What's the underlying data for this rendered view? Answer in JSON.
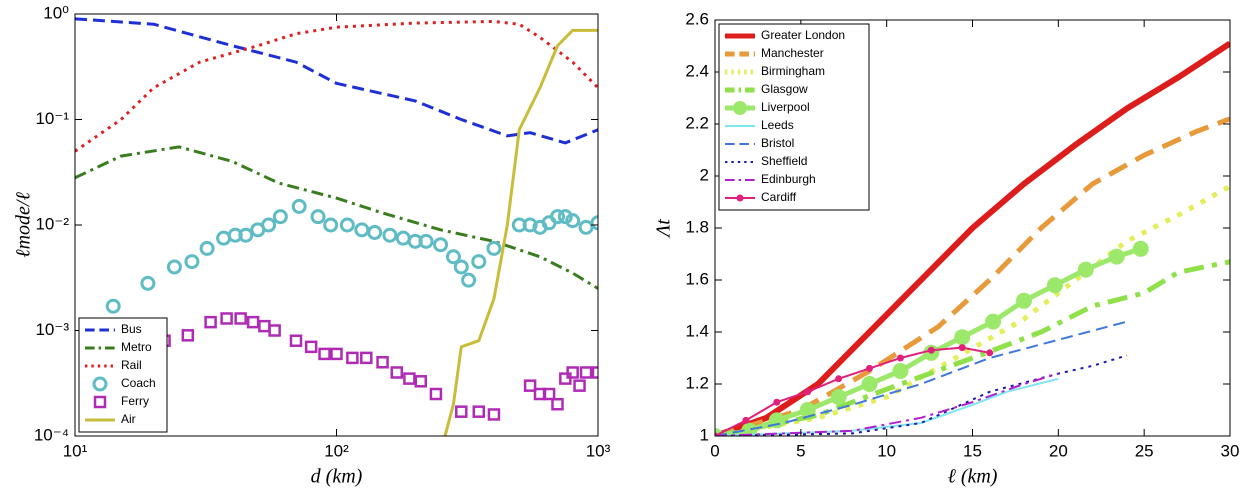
{
  "chart_data": [
    {
      "type": "line",
      "xlabel": "d (km)",
      "ylabel": "ℓmode/ℓ",
      "xscale": "log",
      "yscale": "log",
      "xlim": [
        10,
        1000
      ],
      "ylim": [
        0.0001,
        1
      ],
      "xticks": [
        {
          "value": 10,
          "label": "10¹"
        },
        {
          "value": 100,
          "label": "10²"
        },
        {
          "value": 1000,
          "label": "10³"
        }
      ],
      "yticks": [
        {
          "value": 0.0001,
          "label": "10⁻⁴"
        },
        {
          "value": 0.001,
          "label": "10⁻³"
        },
        {
          "value": 0.01,
          "label": "10⁻²"
        },
        {
          "value": 0.1,
          "label": "10⁻¹"
        },
        {
          "value": 1,
          "label": "10⁰"
        }
      ],
      "legend": "lower left",
      "series": [
        {
          "name": "Bus",
          "color": "#1f2fd6",
          "style": "dashed",
          "x": [
            10,
            20,
            40,
            70,
            100,
            200,
            300,
            450,
            550,
            750,
            1000
          ],
          "values": [
            0.9,
            0.8,
            0.5,
            0.35,
            0.22,
            0.15,
            0.1,
            0.07,
            0.075,
            0.06,
            0.08
          ]
        },
        {
          "name": "Metro",
          "color": "#3a7d1e",
          "style": "dashdot",
          "x": [
            10,
            15,
            25,
            40,
            60,
            100,
            150,
            250,
            400,
            600,
            800,
            1000
          ],
          "values": [
            0.028,
            0.045,
            0.055,
            0.04,
            0.025,
            0.018,
            0.013,
            0.009,
            0.007,
            0.005,
            0.0035,
            0.0025
          ]
        },
        {
          "name": "Rail",
          "color": "#e02020",
          "style": "dotted",
          "x": [
            10,
            15,
            20,
            30,
            50,
            70,
            100,
            200,
            400,
            500,
            600,
            800,
            1000
          ],
          "values": [
            0.05,
            0.1,
            0.2,
            0.35,
            0.5,
            0.65,
            0.75,
            0.82,
            0.85,
            0.8,
            0.6,
            0.35,
            0.2
          ]
        },
        {
          "name": "Coach",
          "color": "#5fbcc4",
          "style": "none",
          "marker": "circle",
          "x": [
            14,
            19,
            24,
            28,
            32,
            37,
            41,
            45,
            50,
            55,
            61,
            72,
            85,
            95,
            110,
            125,
            140,
            160,
            180,
            200,
            220,
            250,
            280,
            300,
            320,
            350,
            400,
            500,
            550,
            600,
            650,
            700,
            750,
            800,
            900,
            1000
          ],
          "values": [
            0.0017,
            0.0028,
            0.004,
            0.0045,
            0.006,
            0.0075,
            0.008,
            0.008,
            0.009,
            0.01,
            0.012,
            0.015,
            0.012,
            0.01,
            0.01,
            0.009,
            0.0085,
            0.008,
            0.0075,
            0.007,
            0.007,
            0.0065,
            0.005,
            0.004,
            0.003,
            0.0045,
            0.006,
            0.01,
            0.01,
            0.0095,
            0.0105,
            0.012,
            0.012,
            0.011,
            0.0095,
            0.0105
          ]
        },
        {
          "name": "Ferry",
          "color": "#b02bb5",
          "style": "none",
          "marker": "square",
          "x": [
            22,
            27,
            33,
            38,
            43,
            48,
            53,
            58,
            70,
            80,
            90,
            100,
            115,
            130,
            150,
            170,
            190,
            210,
            240,
            300,
            350,
            400,
            550,
            600,
            650,
            700,
            750,
            800,
            850,
            900,
            1000
          ],
          "values": [
            0.0008,
            0.0009,
            0.0012,
            0.0013,
            0.0013,
            0.0012,
            0.0011,
            0.001,
            0.0008,
            0.0007,
            0.0006,
            0.0006,
            0.00055,
            0.00055,
            0.0005,
            0.0004,
            0.00035,
            0.00033,
            0.00025,
            0.00017,
            0.00017,
            0.00016,
            0.0003,
            0.00025,
            0.00025,
            0.0002,
            0.00035,
            0.0004,
            0.0003,
            0.0004,
            0.0004
          ]
        },
        {
          "name": "Air",
          "color": "#c8bd3a",
          "style": "solid",
          "x": [
            260,
            280,
            300,
            350,
            400,
            450,
            500,
            600,
            700,
            800,
            1000
          ],
          "values": [
            0.0001,
            0.0002,
            0.0007,
            0.0008,
            0.002,
            0.01,
            0.08,
            0.2,
            0.5,
            0.7,
            0.7
          ]
        }
      ]
    },
    {
      "type": "line",
      "xlabel": "ℓ (km)",
      "ylabel": "Λt",
      "xlim": [
        0,
        30
      ],
      "ylim": [
        1,
        2.6
      ],
      "xticks": [
        0,
        5,
        10,
        15,
        20,
        25,
        30
      ],
      "yticks": [
        1,
        1.2,
        1.4,
        1.6,
        1.8,
        2,
        2.2,
        2.4,
        2.6
      ],
      "legend": "upper left",
      "series": [
        {
          "name": "Greater London",
          "color": "#dd1c1c",
          "style": "solid",
          "linewidth": 6,
          "x": [
            0,
            3,
            6,
            9,
            12,
            15,
            18,
            21,
            24,
            27,
            30
          ],
          "values": [
            1,
            1.07,
            1.2,
            1.4,
            1.6,
            1.8,
            1.97,
            2.12,
            2.26,
            2.38,
            2.51
          ]
        },
        {
          "name": "Manchester",
          "color": "#e8993a",
          "style": "dashed",
          "linewidth": 5,
          "x": [
            0,
            5,
            9,
            13,
            16,
            19,
            22,
            25,
            28,
            30
          ],
          "values": [
            1,
            1.1,
            1.25,
            1.42,
            1.6,
            1.8,
            1.97,
            2.08,
            2.17,
            2.22
          ]
        },
        {
          "name": "Birmingham",
          "color": "#e3ee5a",
          "style": "dotted",
          "linewidth": 5,
          "x": [
            0,
            6,
            10,
            14,
            18,
            21,
            24,
            27,
            30
          ],
          "values": [
            1,
            1.07,
            1.15,
            1.3,
            1.45,
            1.6,
            1.75,
            1.85,
            1.96
          ]
        },
        {
          "name": "Glasgow",
          "color": "#8fe04a",
          "style": "dashdot",
          "linewidth": 5,
          "x": [
            0,
            6,
            10,
            15,
            19,
            22,
            25,
            27,
            30
          ],
          "values": [
            1,
            1.08,
            1.18,
            1.3,
            1.4,
            1.5,
            1.55,
            1.63,
            1.67
          ]
        },
        {
          "name": "Liverpool",
          "color": "#9be86a",
          "style": "solid",
          "linewidth": 5,
          "marker": "bigcircle",
          "x": [
            0,
            2,
            3.6,
            5.4,
            7.2,
            9,
            10.8,
            12.6,
            14.4,
            16.2,
            18,
            19.8,
            21.6,
            23.4,
            24.8
          ],
          "values": [
            1,
            1.02,
            1.06,
            1.1,
            1.15,
            1.2,
            1.25,
            1.32,
            1.38,
            1.44,
            1.52,
            1.58,
            1.64,
            1.69,
            1.72
          ]
        },
        {
          "name": "Leeds",
          "color": "#7fe6f0",
          "style": "solid",
          "linewidth": 2,
          "x": [
            0,
            8,
            12,
            15,
            17,
            20
          ],
          "values": [
            1,
            1.02,
            1.05,
            1.12,
            1.17,
            1.22
          ]
        },
        {
          "name": "Bristol",
          "color": "#3f78dd",
          "style": "dashed",
          "linewidth": 2,
          "x": [
            0,
            4,
            8,
            12,
            16,
            20,
            24
          ],
          "values": [
            1,
            1.05,
            1.12,
            1.2,
            1.3,
            1.37,
            1.44
          ]
        },
        {
          "name": "Sheffield",
          "color": "#1a1aa8",
          "style": "dotted",
          "linewidth": 2,
          "x": [
            0,
            8,
            12,
            16,
            20,
            22,
            24
          ],
          "values": [
            1,
            1.01,
            1.05,
            1.17,
            1.24,
            1.27,
            1.31
          ]
        },
        {
          "name": "Edinburgh",
          "color": "#b020d0",
          "style": "dashdot",
          "linewidth": 2,
          "x": [
            0,
            8,
            12,
            15,
            18,
            20
          ],
          "values": [
            1,
            1.02,
            1.07,
            1.13,
            1.2,
            1.24
          ]
        },
        {
          "name": "Cardiff",
          "color": "#e0207a",
          "style": "solid",
          "linewidth": 2,
          "marker": "dot",
          "x": [
            0,
            1.8,
            3.6,
            5.4,
            7.2,
            9,
            10.8,
            12.6,
            14.4,
            16
          ],
          "values": [
            1,
            1.06,
            1.13,
            1.17,
            1.22,
            1.26,
            1.3,
            1.33,
            1.34,
            1.32
          ]
        }
      ]
    }
  ]
}
